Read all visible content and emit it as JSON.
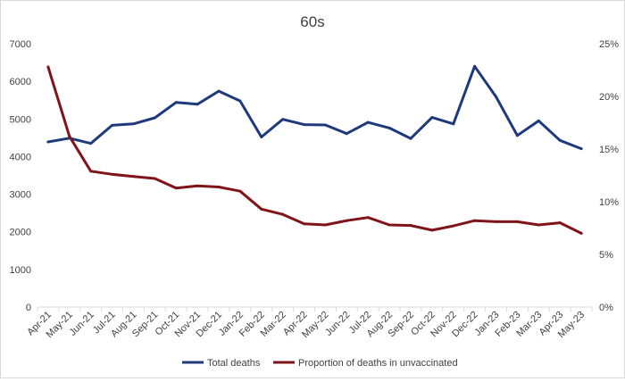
{
  "chart_data": {
    "type": "line",
    "title": "60s",
    "categories": [
      "Apr-21",
      "May-21",
      "Jun-21",
      "Jul-21",
      "Aug-21",
      "Sep-21",
      "Oct-21",
      "Nov-21",
      "Dec-21",
      "Jan-22",
      "Feb-22",
      "Mar-22",
      "Apr-22",
      "May-22",
      "Jun-22",
      "Jul-22",
      "Aug-22",
      "Sep-22",
      "Oct-22",
      "Nov-22",
      "Dec-22",
      "Jan-23",
      "Feb-23",
      "Mar-23",
      "Apr-23",
      "May-23"
    ],
    "y_left": {
      "ylim": [
        0,
        7000
      ],
      "ticks": [
        0,
        1000,
        2000,
        3000,
        4000,
        5000,
        6000,
        7000
      ],
      "tick_labels": [
        "0",
        "1000",
        "2000",
        "3000",
        "4000",
        "5000",
        "6000",
        "7000"
      ]
    },
    "y_right": {
      "ylim": [
        0,
        25
      ],
      "ticks": [
        0,
        5,
        10,
        15,
        20,
        25
      ],
      "tick_labels": [
        "0%",
        "5%",
        "10%",
        "15%",
        "20%",
        "25%"
      ]
    },
    "grid": false,
    "legend_position": "bottom",
    "series": [
      {
        "name": "Total deaths",
        "axis": "left",
        "color": "#1f3a7a",
        "values": [
          4390,
          4490,
          4350,
          4830,
          4870,
          5030,
          5440,
          5390,
          5740,
          5480,
          4520,
          4990,
          4850,
          4840,
          4610,
          4910,
          4760,
          4480,
          5040,
          4870,
          6400,
          5590,
          4560,
          4950,
          4430,
          4210
        ]
      },
      {
        "name": "Proportion of deaths in unvaccinated",
        "axis": "right",
        "color": "#7f1518",
        "values": [
          22.8,
          16.2,
          12.9,
          12.6,
          12.4,
          12.2,
          11.3,
          11.5,
          11.4,
          11.0,
          9.3,
          8.8,
          7.9,
          7.8,
          8.2,
          8.5,
          7.8,
          7.75,
          7.3,
          7.7,
          8.2,
          8.1,
          8.1,
          7.8,
          8.0,
          7.0
        ]
      }
    ]
  }
}
